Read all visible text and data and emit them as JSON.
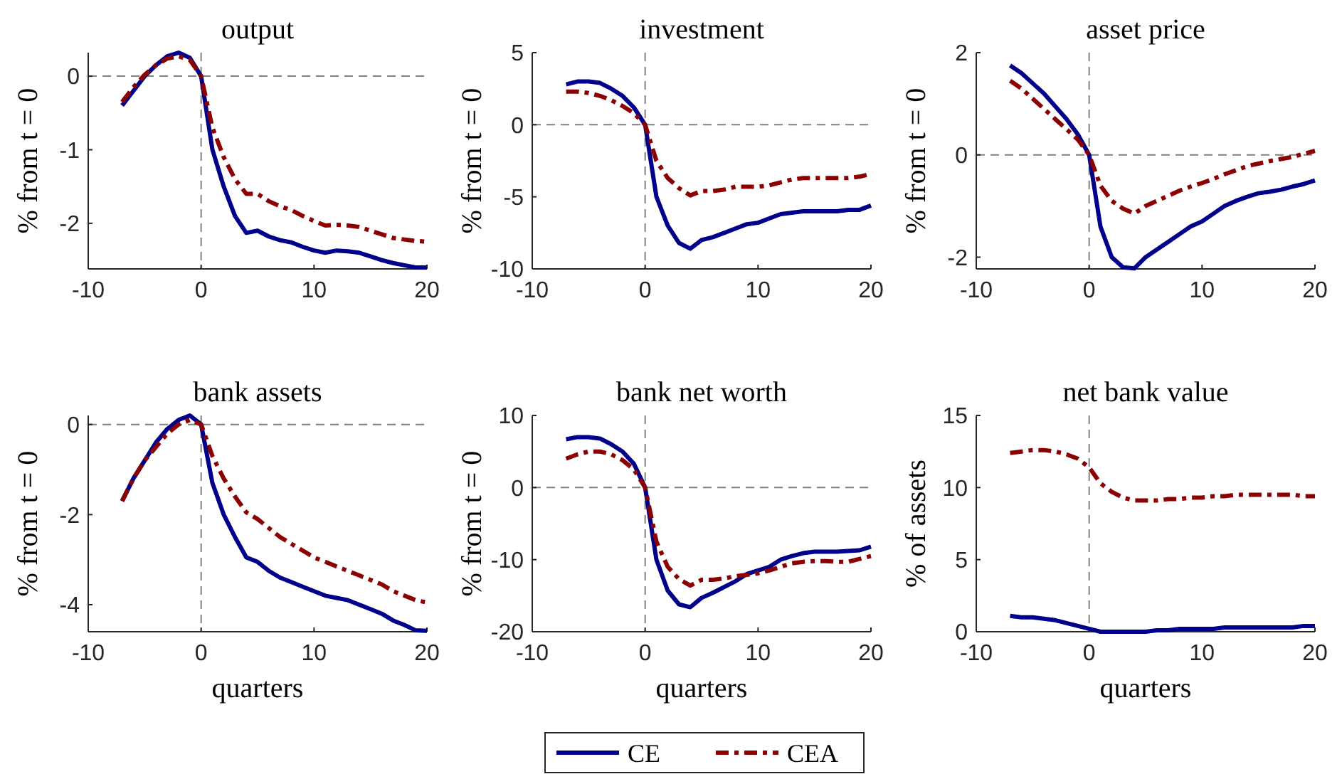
{
  "chart_data": [
    {
      "type": "line",
      "title": "output",
      "ylabel": "% from t = 0",
      "x": [
        -7,
        -6,
        -5,
        -4,
        -3,
        -2,
        -1,
        0,
        1,
        2,
        3,
        4,
        5,
        6,
        7,
        8,
        9,
        10,
        11,
        12,
        13,
        14,
        15,
        16,
        17,
        18,
        19,
        20
      ],
      "xlim": [
        -10,
        20
      ],
      "xticks": [
        -10,
        0,
        10,
        20
      ],
      "ylim": [
        -2.62,
        0.32
      ],
      "yticks": [
        -2,
        -1,
        0
      ],
      "grid": false,
      "legend": "bottom",
      "marker": "none",
      "ref_lines": [
        {
          "axis": "y",
          "value": 0,
          "color": "#808080",
          "line_style": "dashed"
        },
        {
          "axis": "x",
          "value": 0,
          "color": "#808080",
          "line_style": "dashed"
        }
      ],
      "series": [
        {
          "name": "CE",
          "color": "#00008b",
          "line_style": "solid",
          "values": [
            -0.4,
            -0.2,
            0.0,
            0.15,
            0.27,
            0.32,
            0.25,
            0.0,
            -1.0,
            -1.5,
            -1.9,
            -2.13,
            -2.1,
            -2.18,
            -2.23,
            -2.26,
            -2.32,
            -2.37,
            -2.4,
            -2.37,
            -2.38,
            -2.4,
            -2.45,
            -2.5,
            -2.54,
            -2.57,
            -2.6,
            -2.6
          ]
        },
        {
          "name": "CEA",
          "color": "#8b0000",
          "line_style": "dashed",
          "values": [
            -0.35,
            -0.15,
            0.02,
            0.15,
            0.24,
            0.27,
            0.22,
            0.0,
            -0.7,
            -1.1,
            -1.4,
            -1.6,
            -1.6,
            -1.7,
            -1.77,
            -1.82,
            -1.9,
            -1.97,
            -2.03,
            -2.02,
            -2.03,
            -2.05,
            -2.1,
            -2.15,
            -2.2,
            -2.22,
            -2.24,
            -2.25
          ]
        }
      ]
    },
    {
      "type": "line",
      "title": "investment",
      "ylabel": "% from t = 0",
      "x": [
        -7,
        -6,
        -5,
        -4,
        -3,
        -2,
        -1,
        0,
        1,
        2,
        3,
        4,
        5,
        6,
        7,
        8,
        9,
        10,
        11,
        12,
        13,
        14,
        15,
        16,
        17,
        18,
        19,
        20
      ],
      "xlim": [
        -10,
        20
      ],
      "xticks": [
        -10,
        0,
        10,
        20
      ],
      "ylim": [
        -10,
        5
      ],
      "yticks": [
        -10,
        -5,
        0,
        5
      ],
      "grid": false,
      "marker": "none",
      "ref_lines": [
        {
          "axis": "y",
          "value": 0,
          "color": "#808080",
          "line_style": "dashed"
        },
        {
          "axis": "x",
          "value": 0,
          "color": "#808080",
          "line_style": "dashed"
        }
      ],
      "series": [
        {
          "color": "#00008b",
          "line_style": "solid",
          "values": [
            2.8,
            3.0,
            3.0,
            2.9,
            2.5,
            2.0,
            1.2,
            0,
            -5,
            -7,
            -8.2,
            -8.6,
            -8.0,
            -7.8,
            -7.5,
            -7.2,
            -6.9,
            -6.8,
            -6.5,
            -6.2,
            -6.1,
            -6.0,
            -6.0,
            -6.0,
            -6.0,
            -5.9,
            -5.9,
            -5.6
          ]
        },
        {
          "color": "#8b0000",
          "line_style": "dashed",
          "values": [
            2.3,
            2.3,
            2.2,
            2.0,
            1.7,
            1.3,
            0.8,
            0,
            -2.5,
            -3.7,
            -4.4,
            -4.9,
            -4.6,
            -4.6,
            -4.5,
            -4.3,
            -4.3,
            -4.3,
            -4.2,
            -4.0,
            -3.8,
            -3.7,
            -3.7,
            -3.7,
            -3.7,
            -3.7,
            -3.6,
            -3.4
          ]
        }
      ]
    },
    {
      "type": "line",
      "title": "asset price",
      "ylabel": "% from t = 0",
      "x": [
        -7,
        -6,
        -5,
        -4,
        -3,
        -2,
        -1,
        0,
        1,
        2,
        3,
        4,
        5,
        6,
        7,
        8,
        9,
        10,
        11,
        12,
        13,
        14,
        15,
        16,
        17,
        18,
        19,
        20
      ],
      "xlim": [
        -10,
        20
      ],
      "xticks": [
        -10,
        0,
        10,
        20
      ],
      "ylim": [
        -2.23,
        2
      ],
      "yticks": [
        -2,
        0,
        2
      ],
      "grid": false,
      "marker": "none",
      "ref_lines": [
        {
          "axis": "y",
          "value": 0,
          "color": "#808080",
          "line_style": "dashed"
        },
        {
          "axis": "x",
          "value": 0,
          "color": "#808080",
          "line_style": "dashed"
        }
      ],
      "series": [
        {
          "color": "#00008b",
          "line_style": "solid",
          "values": [
            1.75,
            1.6,
            1.4,
            1.2,
            0.95,
            0.7,
            0.4,
            0,
            -1.4,
            -2.0,
            -2.2,
            -2.22,
            -2.0,
            -1.85,
            -1.7,
            -1.55,
            -1.4,
            -1.3,
            -1.15,
            -1.0,
            -0.9,
            -0.82,
            -0.75,
            -0.72,
            -0.68,
            -0.62,
            -0.57,
            -0.5
          ]
        },
        {
          "color": "#8b0000",
          "line_style": "dashed",
          "values": [
            1.45,
            1.3,
            1.1,
            0.9,
            0.7,
            0.5,
            0.3,
            0.0,
            -0.6,
            -0.9,
            -1.05,
            -1.15,
            -1.0,
            -0.9,
            -0.8,
            -0.7,
            -0.62,
            -0.55,
            -0.47,
            -0.38,
            -0.3,
            -0.22,
            -0.17,
            -0.12,
            -0.08,
            -0.04,
            0.02,
            0.08
          ]
        }
      ]
    },
    {
      "type": "line",
      "title": "bank assets",
      "xlabel": "quarters",
      "ylabel": "% from t = 0",
      "x": [
        -7,
        -6,
        -5,
        -4,
        -3,
        -2,
        -1,
        0,
        1,
        2,
        3,
        4,
        5,
        6,
        7,
        8,
        9,
        10,
        11,
        12,
        13,
        14,
        15,
        16,
        17,
        18,
        19,
        20
      ],
      "xlim": [
        -10,
        20
      ],
      "xticks": [
        -10,
        0,
        10,
        20
      ],
      "ylim": [
        -4.6,
        0.2
      ],
      "yticks": [
        -4,
        -2,
        0
      ],
      "grid": false,
      "marker": "none",
      "ref_lines": [
        {
          "axis": "y",
          "value": 0,
          "color": "#808080",
          "line_style": "dashed"
        },
        {
          "axis": "x",
          "value": 0,
          "color": "#808080",
          "line_style": "dashed"
        }
      ],
      "series": [
        {
          "color": "#00008b",
          "line_style": "solid",
          "values": [
            -1.7,
            -1.2,
            -0.8,
            -0.4,
            -0.1,
            0.1,
            0.2,
            0.0,
            -1.3,
            -2.0,
            -2.5,
            -2.95,
            -3.05,
            -3.25,
            -3.4,
            -3.5,
            -3.6,
            -3.7,
            -3.8,
            -3.85,
            -3.9,
            -4.0,
            -4.1,
            -4.2,
            -4.35,
            -4.45,
            -4.57,
            -4.58
          ]
        },
        {
          "color": "#8b0000",
          "line_style": "dashed",
          "values": [
            -1.7,
            -1.2,
            -0.8,
            -0.5,
            -0.2,
            0.0,
            0.1,
            0.0,
            -0.7,
            -1.2,
            -1.6,
            -1.95,
            -2.1,
            -2.3,
            -2.5,
            -2.65,
            -2.8,
            -2.95,
            -3.05,
            -3.15,
            -3.25,
            -3.35,
            -3.45,
            -3.55,
            -3.7,
            -3.8,
            -3.9,
            -3.95
          ]
        }
      ]
    },
    {
      "type": "line",
      "title": "bank net worth",
      "xlabel": "quarters",
      "ylabel": "% from t = 0",
      "x": [
        -7,
        -6,
        -5,
        -4,
        -3,
        -2,
        -1,
        0,
        1,
        2,
        3,
        4,
        5,
        6,
        7,
        8,
        9,
        10,
        11,
        12,
        13,
        14,
        15,
        16,
        17,
        18,
        19,
        20
      ],
      "xlim": [
        -10,
        20
      ],
      "xticks": [
        -10,
        0,
        10,
        20
      ],
      "ylim": [
        -20,
        10
      ],
      "yticks": [
        -20,
        -10,
        0,
        10
      ],
      "grid": false,
      "marker": "none",
      "ref_lines": [
        {
          "axis": "y",
          "value": 0,
          "color": "#808080",
          "line_style": "dashed"
        },
        {
          "axis": "x",
          "value": 0,
          "color": "#808080",
          "line_style": "dashed"
        }
      ],
      "series": [
        {
          "color": "#00008b",
          "line_style": "solid",
          "values": [
            6.7,
            7.0,
            7.0,
            6.8,
            6.0,
            5.0,
            3.3,
            0,
            -10,
            -14.3,
            -16.2,
            -16.6,
            -15.3,
            -14.6,
            -13.8,
            -13.0,
            -12.0,
            -11.5,
            -11.0,
            -10.0,
            -9.5,
            -9.1,
            -8.9,
            -8.9,
            -8.9,
            -8.8,
            -8.7,
            -8.2
          ]
        },
        {
          "color": "#8b0000",
          "line_style": "dashed",
          "values": [
            4.0,
            4.6,
            5.0,
            5.0,
            4.6,
            3.8,
            2.5,
            0,
            -7.5,
            -11,
            -12.7,
            -13.6,
            -12.8,
            -12.8,
            -12.6,
            -12.3,
            -12.1,
            -11.9,
            -11.5,
            -11.0,
            -10.5,
            -10.3,
            -10.2,
            -10.2,
            -10.3,
            -10.3,
            -9.9,
            -9.5
          ]
        }
      ]
    },
    {
      "type": "line",
      "title": "net bank value",
      "xlabel": "quarters",
      "ylabel": "% of assets",
      "x": [
        -7,
        -6,
        -5,
        -4,
        -3,
        -2,
        -1,
        0,
        1,
        2,
        3,
        4,
        5,
        6,
        7,
        8,
        9,
        10,
        11,
        12,
        13,
        14,
        15,
        16,
        17,
        18,
        19,
        20
      ],
      "xlim": [
        -10,
        20
      ],
      "xticks": [
        -10,
        0,
        10,
        20
      ],
      "ylim": [
        0,
        15
      ],
      "yticks": [
        0,
        5,
        10,
        15
      ],
      "grid": false,
      "marker": "none",
      "ref_lines": [
        {
          "axis": "x",
          "value": 0,
          "color": "#808080",
          "line_style": "dashed"
        }
      ],
      "series": [
        {
          "color": "#00008b",
          "line_style": "solid",
          "values": [
            1.1,
            1.0,
            1.0,
            0.9,
            0.8,
            0.6,
            0.4,
            0.2,
            0.0,
            0.0,
            0.0,
            0.0,
            0.0,
            0.1,
            0.1,
            0.2,
            0.2,
            0.2,
            0.2,
            0.3,
            0.3,
            0.3,
            0.3,
            0.3,
            0.3,
            0.3,
            0.4,
            0.4
          ]
        },
        {
          "color": "#8b0000",
          "line_style": "dashed",
          "values": [
            12.4,
            12.5,
            12.6,
            12.6,
            12.5,
            12.3,
            12.0,
            11.4,
            10.3,
            9.7,
            9.3,
            9.1,
            9.1,
            9.1,
            9.2,
            9.2,
            9.3,
            9.3,
            9.4,
            9.4,
            9.5,
            9.5,
            9.5,
            9.5,
            9.5,
            9.5,
            9.4,
            9.4
          ]
        }
      ]
    }
  ]
}
